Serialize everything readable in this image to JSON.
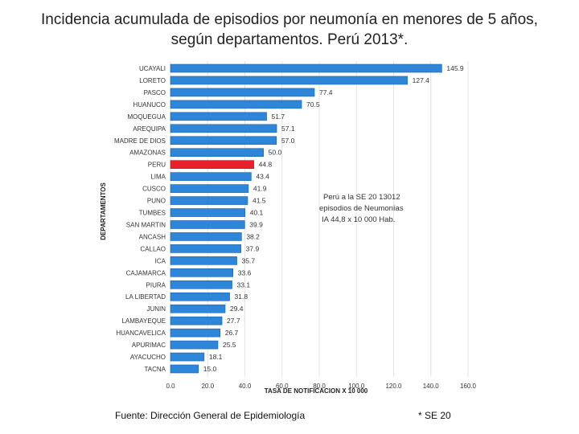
{
  "title": "Incidencia acumulada de episodios por neumonía en menores de 5 años, según departamentos. Perú 2013*.",
  "footer": {
    "source": "Fuente: Dirección General de Epidemiología",
    "note": "* SE 20"
  },
  "annotation": {
    "line1": "Perú a la SE 20 13012",
    "line2": "episodios de Neumonías",
    "line3": "IA 44,8   x 10 000  Hab."
  },
  "colors": {
    "bar": "#2e86d9",
    "bar_highlight": "#e8202a",
    "bar_edge": "#1c5fa8"
  },
  "chart_data": {
    "type": "bar",
    "orientation": "horizontal",
    "xlabel": "TASA DE NOTIFICACION  X 10 000",
    "ylabel": "DEPARTAMENTOS",
    "xlim": [
      0,
      160
    ],
    "xticks": [
      0,
      20,
      40,
      60,
      80,
      100,
      120,
      140,
      160
    ],
    "xtick_labels": [
      "0.0",
      "20.0",
      "40.0",
      "60.0",
      "80.0",
      "100.0",
      "120.0",
      "140.0",
      "160.0"
    ],
    "highlight": "PERU",
    "categories": [
      "UCAYALI",
      "LORETO",
      "PASCO",
      "HUANUCO",
      "MOQUEGUA",
      "AREQUIPA",
      "MADRE DE DIOS",
      "AMAZONAS",
      "PERU",
      "LIMA",
      "CUSCO",
      "PUNO",
      "TUMBES",
      "SAN MARTIN",
      "ANCASH",
      "CALLAO",
      "ICA",
      "CAJAMARCA",
      "PIURA",
      "LA LIBERTAD",
      "JUNIN",
      "LAMBAYEQUE",
      "HUANCAVELICA",
      "APURIMAC",
      "AYACUCHO",
      "TACNA"
    ],
    "values": [
      145.9,
      127.4,
      77.4,
      70.5,
      51.7,
      57.1,
      57.0,
      50.0,
      44.8,
      43.4,
      41.9,
      41.5,
      40.1,
      39.9,
      38.2,
      37.9,
      35.7,
      33.6,
      33.1,
      31.8,
      29.4,
      27.7,
      26.7,
      25.5,
      18.1,
      15.0
    ],
    "value_labels": [
      "145.9",
      "127.4",
      "77.4",
      "70.5",
      "51.7",
      "57.1",
      "57.0",
      "50.0",
      "44.8",
      "43.4",
      "41.9",
      "41.5",
      "40.1",
      "39.9",
      "38.2",
      "37.9",
      "35.7",
      "33.6",
      "33.1",
      "31.8",
      "29.4",
      "27.7",
      "26.7",
      "25.5",
      "18.1",
      "15.0"
    ]
  }
}
